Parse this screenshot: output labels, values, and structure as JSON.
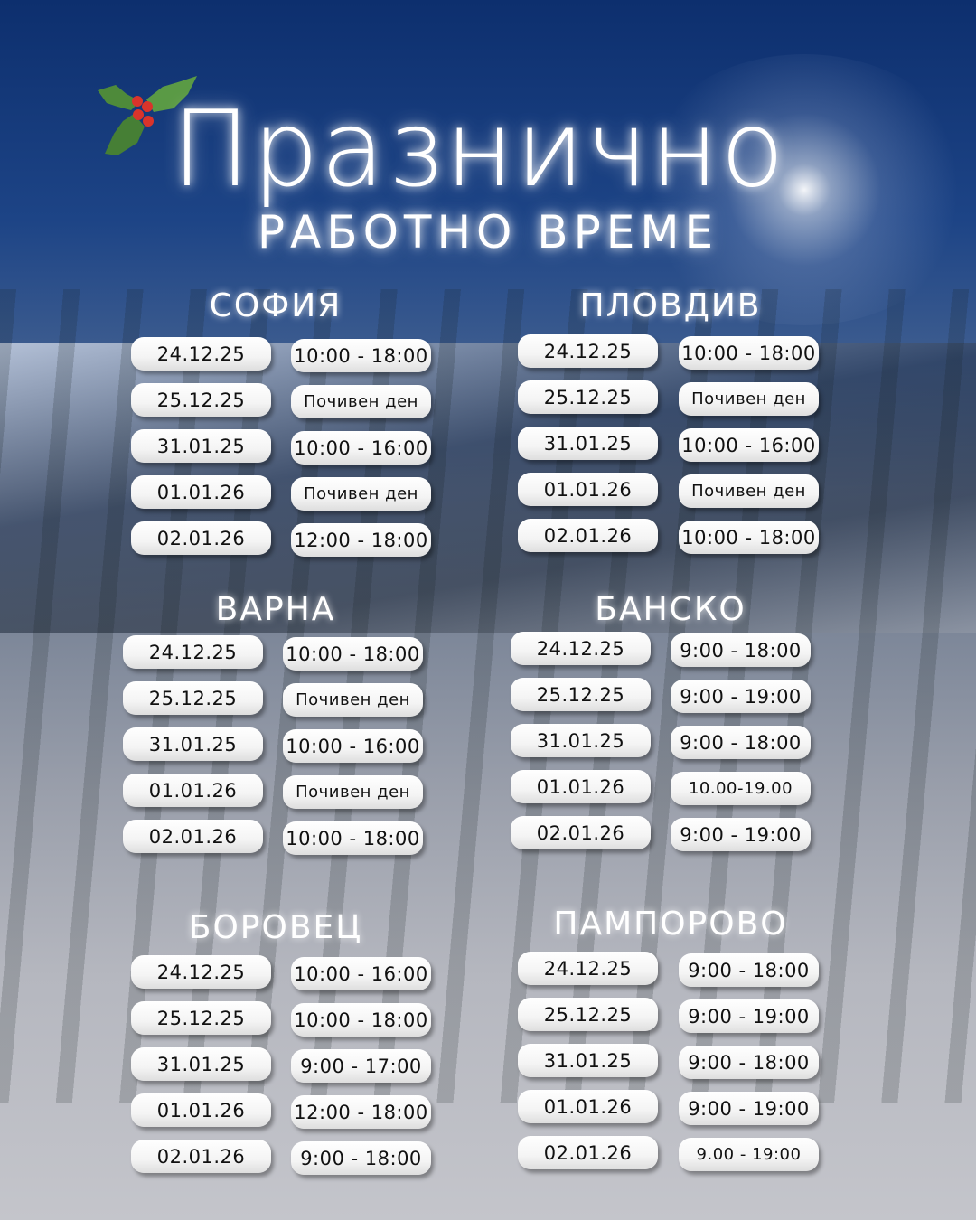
{
  "title": "Празнично",
  "subtitle": "РАБОТНО ВРЕМЕ",
  "colors": {
    "sky": "#1d4486",
    "snow": "#c4c5cb",
    "pill": "#ffffff",
    "holly_berry": "#d9342b",
    "holly_leaf": "#4e8a3a"
  },
  "icons": {
    "decoration": "holly-icon"
  },
  "cities": [
    {
      "name": "СОФИЯ",
      "rows": [
        {
          "date": "24.12.25",
          "hours": "10:00 - 18:00"
        },
        {
          "date": "25.12.25",
          "hours": "Почивен ден"
        },
        {
          "date": "31.01.25",
          "hours": "10:00 - 16:00"
        },
        {
          "date": "01.01.26",
          "hours": "Почивен ден"
        },
        {
          "date": "02.01.26",
          "hours": "12:00 - 18:00"
        }
      ]
    },
    {
      "name": "ПЛОВДИВ",
      "rows": [
        {
          "date": "24.12.25",
          "hours": "10:00 - 18:00"
        },
        {
          "date": "25.12.25",
          "hours": "Почивен ден"
        },
        {
          "date": "31.01.25",
          "hours": "10:00 - 16:00"
        },
        {
          "date": "01.01.26",
          "hours": "Почивен ден"
        },
        {
          "date": "02.01.26",
          "hours": "10:00 - 18:00"
        }
      ]
    },
    {
      "name": "ВАРНА",
      "rows": [
        {
          "date": "24.12.25",
          "hours": "10:00 - 18:00"
        },
        {
          "date": "25.12.25",
          "hours": "Почивен ден"
        },
        {
          "date": "31.01.25",
          "hours": "10:00 - 16:00"
        },
        {
          "date": "01.01.26",
          "hours": "Почивен ден"
        },
        {
          "date": "02.01.26",
          "hours": "10:00 - 18:00"
        }
      ]
    },
    {
      "name": "БАНСКО",
      "rows": [
        {
          "date": "24.12.25",
          "hours": "9:00 - 18:00"
        },
        {
          "date": "25.12.25",
          "hours": "9:00 - 19:00"
        },
        {
          "date": "31.01.25",
          "hours": "9:00 - 18:00"
        },
        {
          "date": "01.01.26",
          "hours": "10.00-19.00"
        },
        {
          "date": "02.01.26",
          "hours": "9:00 - 19:00"
        }
      ]
    },
    {
      "name": "БОРОВЕЦ",
      "rows": [
        {
          "date": "24.12.25",
          "hours": "10:00 - 16:00"
        },
        {
          "date": "25.12.25",
          "hours": "10:00 - 18:00"
        },
        {
          "date": "31.01.25",
          "hours": "9:00 - 17:00"
        },
        {
          "date": "01.01.26",
          "hours": "12:00 - 18:00"
        },
        {
          "date": "02.01.26",
          "hours": "9:00 - 18:00"
        }
      ]
    },
    {
      "name": "ПАМПОРОВО",
      "rows": [
        {
          "date": "24.12.25",
          "hours": "9:00 - 18:00"
        },
        {
          "date": "25.12.25",
          "hours": "9:00 - 19:00"
        },
        {
          "date": "31.01.25",
          "hours": "9:00 - 18:00"
        },
        {
          "date": "01.01.26",
          "hours": "9:00 - 19:00"
        },
        {
          "date": "02.01.26",
          "hours": "9.00 - 19:00"
        }
      ]
    }
  ]
}
